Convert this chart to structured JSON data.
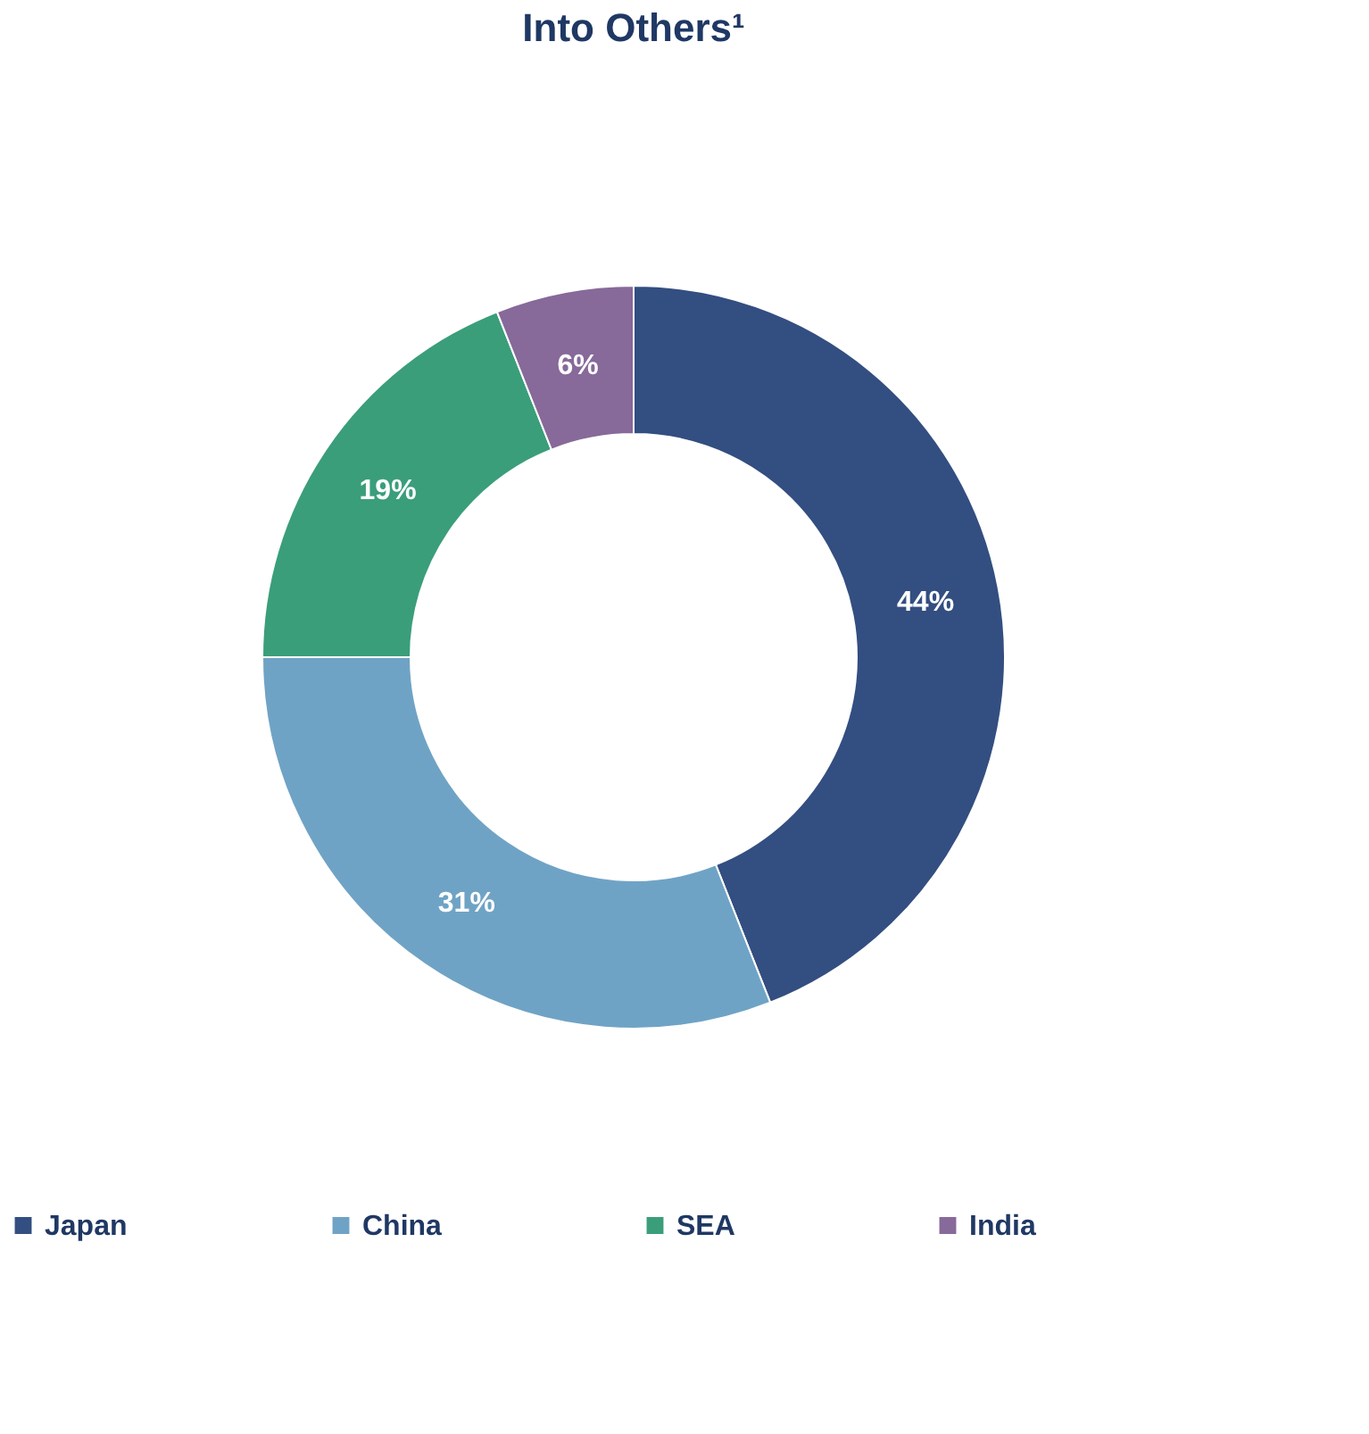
{
  "chart_data": {
    "type": "donut",
    "title": "Into Others¹",
    "categories": [
      "Japan",
      "China",
      "SEA",
      "India"
    ],
    "values": [
      44,
      31,
      19,
      6
    ],
    "colors": [
      "#334e80",
      "#6fa3c5",
      "#3a9e7a",
      "#87699a"
    ],
    "value_labels": [
      "44%",
      "31%",
      "19%",
      "6%"
    ],
    "legend": "bottom"
  }
}
